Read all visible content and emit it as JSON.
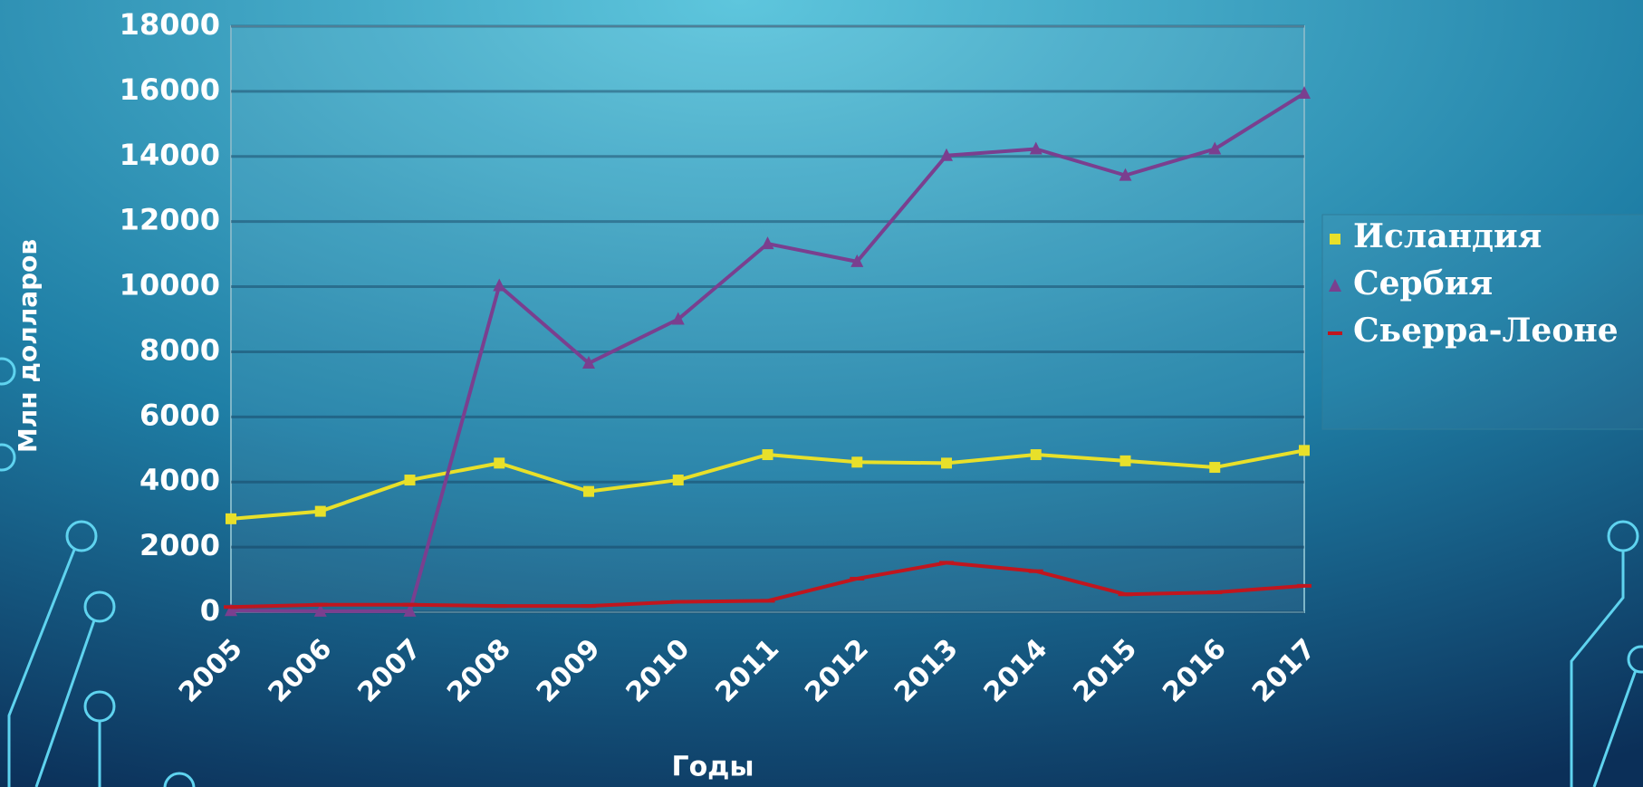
{
  "chart_data": {
    "type": "line",
    "x_label": "Годы",
    "y_label": "Млн долларов",
    "categories": [
      "2005",
      "2006",
      "2007",
      "2008",
      "2009",
      "2010",
      "2011",
      "2012",
      "2013",
      "2014",
      "2015",
      "2016",
      "2017"
    ],
    "series": [
      {
        "name": "Исландия",
        "color": "#e8e02a",
        "values": [
          2870,
          3100,
          4060,
          4580,
          3710,
          4060,
          4840,
          4610,
          4580,
          4840,
          4650,
          4450,
          4970
        ]
      },
      {
        "name": "Сербия",
        "color": "#7a3f8f",
        "values": [
          50,
          30,
          30,
          10030,
          7650,
          9000,
          11320,
          10770,
          14030,
          14230,
          13420,
          14230,
          15940
        ]
      },
      {
        "name": "Сьерра-Леоне",
        "color": "#c0161e",
        "values": [
          160,
          230,
          230,
          190,
          190,
          320,
          350,
          1030,
          1520,
          1260,
          550,
          610,
          810
        ]
      }
    ],
    "ylim": [
      0,
      18000
    ],
    "yticks": [
      0,
      2000,
      4000,
      6000,
      8000,
      10000,
      12000,
      14000,
      16000,
      18000
    ],
    "grid": true,
    "legend": "right"
  }
}
